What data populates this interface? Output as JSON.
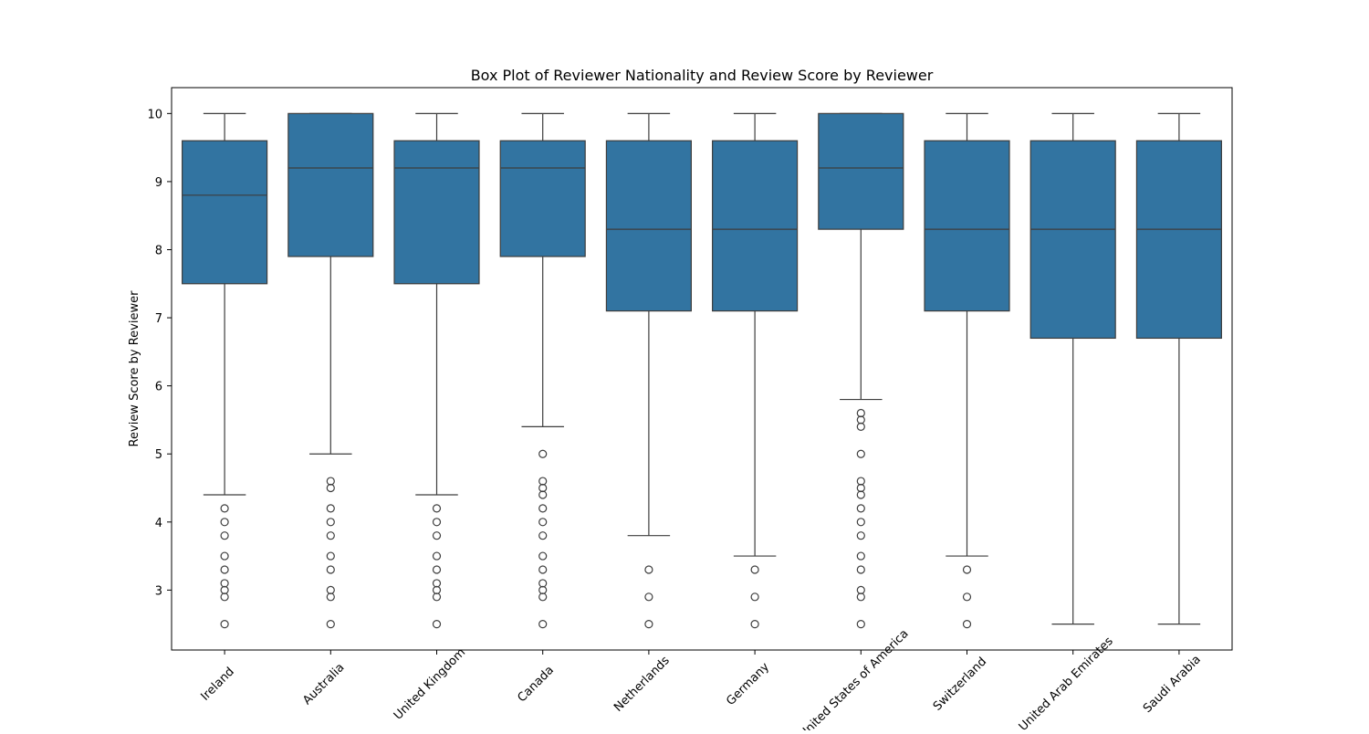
{
  "chart_data": {
    "type": "box",
    "title": "Box Plot of Reviewer Nationality and Review Score by Reviewer",
    "xlabel": "",
    "ylabel": "Review Score by Reviewer",
    "ylim": [
      2.12,
      10.38
    ],
    "yticks": [
      3,
      4,
      5,
      6,
      7,
      8,
      9,
      10
    ],
    "categories": [
      "Ireland",
      "Australia",
      "United Kingdom",
      "Canada",
      "Netherlands",
      "Germany",
      "United States of America",
      "Switzerland",
      "United Arab Emirates",
      "Saudi Arabia"
    ],
    "box_color": "#3274a1",
    "line_color": "#3d3d3d",
    "grid": false,
    "boxes": [
      {
        "category": "Ireland",
        "whisker_low": 4.4,
        "q1": 7.5,
        "median": 8.8,
        "q3": 9.6,
        "whisker_high": 10.0,
        "outliers": [
          4.2,
          4.0,
          3.8,
          3.5,
          3.3,
          3.1,
          3.0,
          2.9,
          2.5
        ]
      },
      {
        "category": "Australia",
        "whisker_low": 5.0,
        "q1": 7.9,
        "median": 9.2,
        "q3": 10.0,
        "whisker_high": 10.0,
        "outliers": [
          4.6,
          4.5,
          4.2,
          4.0,
          3.8,
          3.5,
          3.3,
          3.0,
          2.9,
          2.5
        ]
      },
      {
        "category": "United Kingdom",
        "whisker_low": 4.4,
        "q1": 7.5,
        "median": 9.2,
        "q3": 9.6,
        "whisker_high": 10.0,
        "outliers": [
          4.2,
          4.0,
          3.8,
          3.5,
          3.3,
          3.1,
          3.0,
          2.9,
          2.5
        ]
      },
      {
        "category": "Canada",
        "whisker_low": 5.4,
        "q1": 7.9,
        "median": 9.2,
        "q3": 9.6,
        "whisker_high": 10.0,
        "outliers": [
          5.0,
          4.6,
          4.5,
          4.4,
          4.2,
          4.0,
          3.8,
          3.5,
          3.3,
          3.1,
          3.0,
          2.9,
          2.5
        ]
      },
      {
        "category": "Netherlands",
        "whisker_low": 3.8,
        "q1": 7.1,
        "median": 8.3,
        "q3": 9.6,
        "whisker_high": 10.0,
        "outliers": [
          3.3,
          2.9,
          2.5
        ]
      },
      {
        "category": "Germany",
        "whisker_low": 3.5,
        "q1": 7.1,
        "median": 8.3,
        "q3": 9.6,
        "whisker_high": 10.0,
        "outliers": [
          3.3,
          2.9,
          2.5
        ]
      },
      {
        "category": "United States of America",
        "whisker_low": 5.8,
        "q1": 8.3,
        "median": 9.2,
        "q3": 10.0,
        "whisker_high": 10.0,
        "outliers": [
          5.6,
          5.5,
          5.4,
          5.0,
          4.6,
          4.5,
          4.4,
          4.2,
          4.0,
          3.8,
          3.5,
          3.3,
          3.0,
          2.9,
          2.5
        ]
      },
      {
        "category": "Switzerland",
        "whisker_low": 3.5,
        "q1": 7.1,
        "median": 8.3,
        "q3": 9.6,
        "whisker_high": 10.0,
        "outliers": [
          3.3,
          2.9,
          2.5
        ]
      },
      {
        "category": "United Arab Emirates",
        "whisker_low": 2.5,
        "q1": 6.7,
        "median": 8.3,
        "q3": 9.6,
        "whisker_high": 10.0,
        "outliers": []
      },
      {
        "category": "Saudi Arabia",
        "whisker_low": 2.5,
        "q1": 6.7,
        "median": 8.3,
        "q3": 9.6,
        "whisker_high": 10.0,
        "outliers": []
      }
    ]
  }
}
